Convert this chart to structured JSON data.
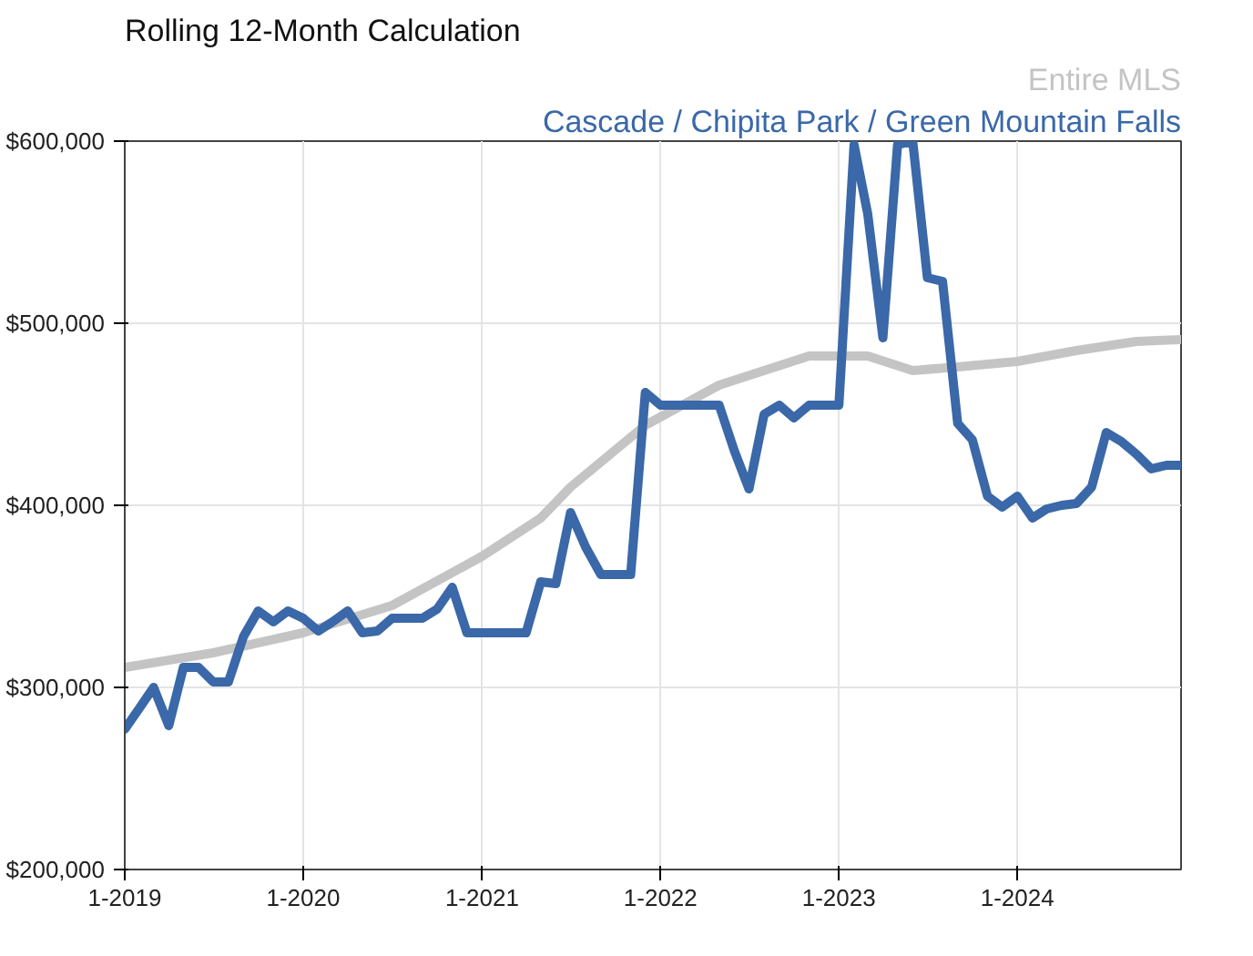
{
  "chart_data": {
    "type": "line",
    "title": "Rolling 12-Month Calculation",
    "xlim": [
      "2019-01",
      "2024-12"
    ],
    "xticks": [
      {
        "value": "2019-01",
        "label": "1-2019"
      },
      {
        "value": "2020-01",
        "label": "1-2020"
      },
      {
        "value": "2021-01",
        "label": "1-2021"
      },
      {
        "value": "2022-01",
        "label": "1-2022"
      },
      {
        "value": "2023-01",
        "label": "1-2023"
      },
      {
        "value": "2024-01",
        "label": "1-2024"
      }
    ],
    "ylim": [
      200000,
      600000
    ],
    "yticks": [
      {
        "value": 200000,
        "label": "$200,000"
      },
      {
        "value": 300000,
        "label": "$300,000"
      },
      {
        "value": 400000,
        "label": "$400,000"
      },
      {
        "value": 500000,
        "label": "$500,000"
      },
      {
        "value": 600000,
        "label": "$600,000"
      }
    ],
    "grid": true,
    "marker": "none",
    "line_style": "solid",
    "series": [
      {
        "name": "Entire MLS",
        "color": "#c4c4c4",
        "x": [
          "2019-01",
          "2019-07",
          "2020-01",
          "2020-07",
          "2021-01",
          "2021-05",
          "2021-07",
          "2021-12",
          "2022-05",
          "2022-11",
          "2023-03",
          "2023-06",
          "2023-09",
          "2024-01",
          "2024-05",
          "2024-09",
          "2024-12"
        ],
        "values": [
          311000,
          319000,
          330000,
          345000,
          372000,
          393000,
          410000,
          444000,
          466000,
          482000,
          482000,
          474000,
          476000,
          479000,
          485000,
          490000,
          491000
        ]
      },
      {
        "name": "Cascade / Chipita Park / Green Mountain Falls",
        "color": "#3a68a8",
        "x": [
          "2019-01",
          "2019-02",
          "2019-03",
          "2019-04",
          "2019-05",
          "2019-06",
          "2019-07",
          "2019-08",
          "2019-09",
          "2019-10",
          "2019-11",
          "2019-12",
          "2020-01",
          "2020-02",
          "2020-03",
          "2020-04",
          "2020-05",
          "2020-06",
          "2020-07",
          "2020-08",
          "2020-09",
          "2020-10",
          "2020-11",
          "2020-12",
          "2021-01",
          "2021-02",
          "2021-03",
          "2021-04",
          "2021-05",
          "2021-06",
          "2021-07",
          "2021-08",
          "2021-09",
          "2021-10",
          "2021-11",
          "2021-12",
          "2022-01",
          "2022-02",
          "2022-03",
          "2022-04",
          "2022-05",
          "2022-06",
          "2022-07",
          "2022-08",
          "2022-09",
          "2022-10",
          "2022-11",
          "2022-12",
          "2023-01",
          "2023-02",
          "2023-03",
          "2023-04",
          "2023-05",
          "2023-06",
          "2023-07",
          "2023-08",
          "2023-09",
          "2023-10",
          "2023-11",
          "2023-12",
          "2024-01",
          "2024-02",
          "2024-03",
          "2024-04",
          "2024-05",
          "2024-06",
          "2024-07",
          "2024-08",
          "2024-09",
          "2024-10",
          "2024-11",
          "2024-12"
        ],
        "values": [
          277000,
          289000,
          300000,
          279000,
          311000,
          311000,
          303000,
          303000,
          328000,
          342000,
          336000,
          342000,
          338000,
          331000,
          336000,
          342000,
          330000,
          331000,
          338000,
          338000,
          338000,
          343000,
          355000,
          330000,
          330000,
          330000,
          330000,
          330000,
          358000,
          357000,
          396000,
          377000,
          362000,
          362000,
          362000,
          462000,
          455000,
          455000,
          455000,
          455000,
          455000,
          430000,
          409000,
          450000,
          455000,
          448000,
          455000,
          455000,
          455000,
          598000,
          560000,
          492000,
          598000,
          600000,
          525000,
          523000,
          445000,
          436000,
          405000,
          399000,
          405000,
          393000,
          398000,
          400000,
          401000,
          410000,
          440000,
          435000,
          428000,
          420000,
          422000,
          422000
        ]
      }
    ]
  }
}
